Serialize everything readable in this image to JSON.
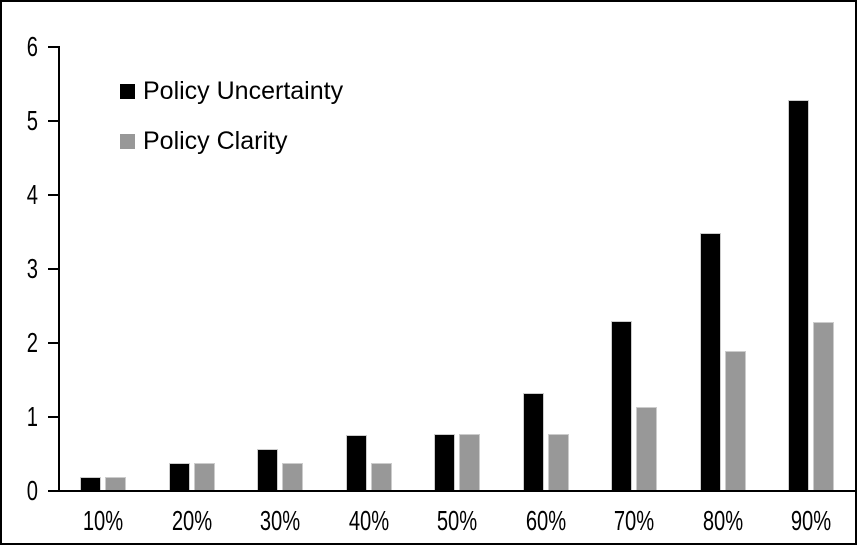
{
  "chart_data": {
    "type": "bar",
    "title": "",
    "xlabel": "",
    "ylabel": "",
    "categories": [
      "10%",
      "20%",
      "30%",
      "40%",
      "50%",
      "60%",
      "70%",
      "80%",
      "90%"
    ],
    "series": [
      {
        "name": "Policy Uncertainty",
        "color": "#000000",
        "values": [
          0.19,
          0.38,
          0.57,
          0.76,
          0.77,
          1.33,
          2.3,
          3.49,
          5.28
        ]
      },
      {
        "name": "Policy Clarity",
        "color": "#989898",
        "values": [
          0.19,
          0.38,
          0.38,
          0.38,
          0.77,
          0.77,
          1.14,
          1.89,
          2.29
        ]
      }
    ],
    "ylim": [
      0,
      6
    ],
    "yticks": [
      0,
      1,
      2,
      3,
      4,
      5,
      6
    ],
    "grid": false,
    "legend_position": "top-left-inside"
  },
  "colors": {
    "background": "#ffffff",
    "frame": "#000000",
    "axis": "#000000",
    "bar_border": "#cccccc",
    "series_black": "#000000",
    "series_gray": "#989898"
  }
}
